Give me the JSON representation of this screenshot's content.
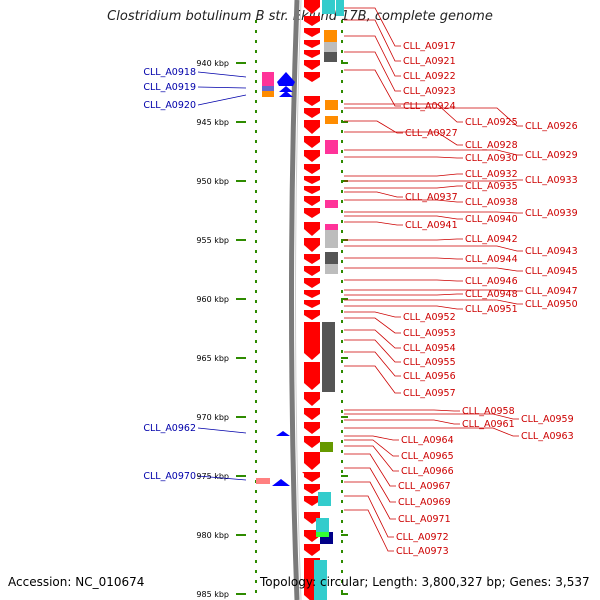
{
  "title": "Clostridium botulinum B str. Eklund 17B, complete genome",
  "footer": {
    "accession": "Accession: NC_010674",
    "summary": "Topology: circular; Length: 3,800,327 bp; Genes: 3,537"
  },
  "colors": {
    "forward_label": "#cc0000",
    "reverse_label": "#0000aa",
    "forward_gene": "#ff0000",
    "reverse_gene": "#0000ff",
    "ruler_dash": "#2e8b00",
    "backbone": "#7a7a7a"
  },
  "chart_data": {
    "type": "genome-map",
    "range_kbp": [
      936,
      986
    ],
    "ticks": [
      {
        "kbp": 940,
        "label": "940 kbp"
      },
      {
        "kbp": 945,
        "label": "945 kbp"
      },
      {
        "kbp": 950,
        "label": "950 kbp"
      },
      {
        "kbp": 955,
        "label": "955 kbp"
      },
      {
        "kbp": 960,
        "label": "960 kbp"
      },
      {
        "kbp": 965,
        "label": "965 kbp"
      },
      {
        "kbp": 970,
        "label": "970 kbp"
      },
      {
        "kbp": 975,
        "label": "975 kbp"
      },
      {
        "kbp": 980,
        "label": "980 kbp"
      },
      {
        "kbp": 985,
        "label": "985 kbp"
      }
    ],
    "reverse_genes": [
      "CLL_A0918",
      "CLL_A0919",
      "CLL_A0920",
      "CLL_A0962",
      "CLL_A0970"
    ],
    "forward_genes": [
      "CLL_A0917",
      "CLL_A0921",
      "CLL_A0922",
      "CLL_A0923",
      "CLL_A0924",
      "CLL_A0925",
      "CLL_A0926",
      "CLL_A0927",
      "CLL_A0928",
      "CLL_A0929",
      "CLL_A0930",
      "CLL_A0932",
      "CLL_A0933",
      "CLL_A0935",
      "CLL_A0937",
      "CLL_A0938",
      "CLL_A0939",
      "CLL_A0940",
      "CLL_A0941",
      "CLL_A0942",
      "CLL_A0943",
      "CLL_A0944",
      "CLL_A0945",
      "CLL_A0946",
      "CLL_A0947",
      "CLL_A0948",
      "CLL_A0950",
      "CLL_A0951",
      "CLL_A0952",
      "CLL_A0953",
      "CLL_A0954",
      "CLL_A0955",
      "CLL_A0956",
      "CLL_A0957",
      "CLL_A0958",
      "CLL_A0959",
      "CLL_A0961",
      "CLL_A0963",
      "CLL_A0964",
      "CLL_A0965",
      "CLL_A0966",
      "CLL_A0967",
      "CLL_A0969",
      "CLL_A0971",
      "CLL_A0972",
      "CLL_A0973"
    ]
  }
}
